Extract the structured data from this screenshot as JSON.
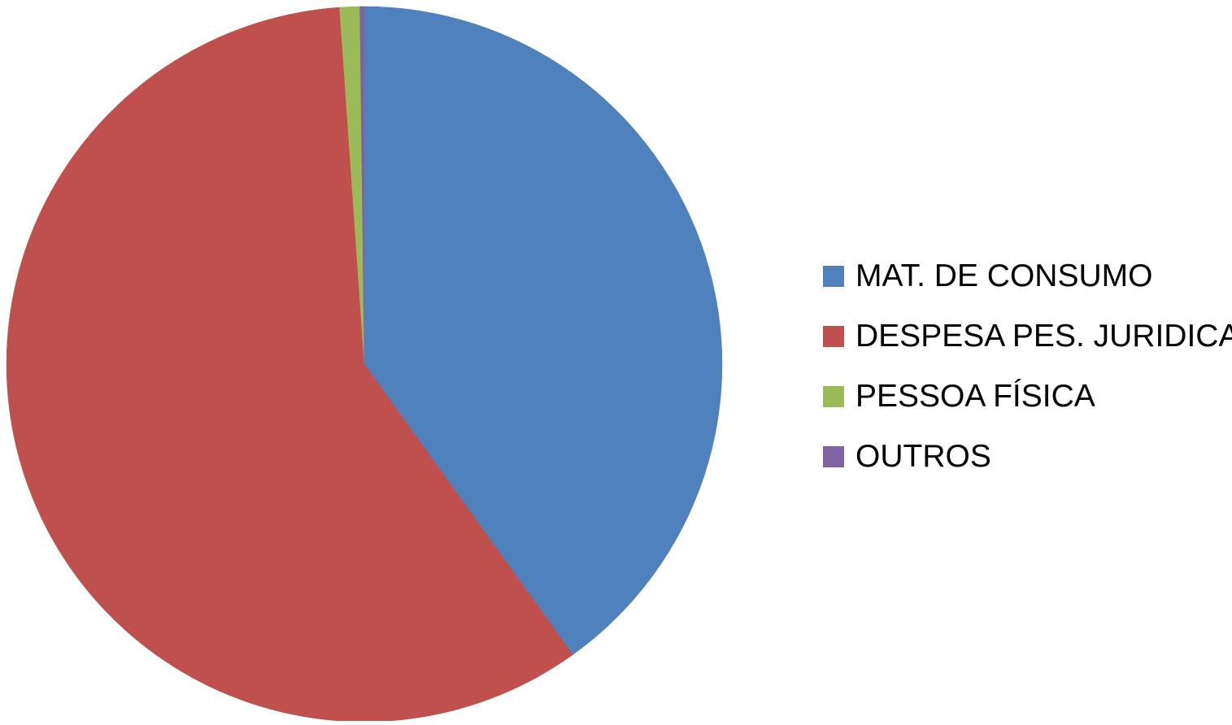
{
  "chart_data": {
    "type": "pie",
    "title": "",
    "categories": [
      "MAT. DE CONSUMO",
      "DESPESA PES. JURIDICA",
      "PESSOA FÍSICA",
      "OUTROS"
    ],
    "values": [
      40.1,
      58.8,
      0.9,
      0.2
    ],
    "value_unit": "percent of total (estimated)",
    "colors": [
      "#4F81BD",
      "#C0504D",
      "#9BBB59",
      "#8064A2"
    ],
    "start_angle_deg": 0,
    "direction": "clockwise",
    "legend_position": "right"
  },
  "legend": {
    "items": [
      {
        "label": "MAT. DE CONSUMO",
        "color": "#4F81BD"
      },
      {
        "label": "DESPESA PES. JURIDICA",
        "color": "#C0504D"
      },
      {
        "label": "PESSOA FÍSICA",
        "color": "#9BBB59"
      },
      {
        "label": "OUTROS",
        "color": "#8064A2"
      }
    ]
  }
}
